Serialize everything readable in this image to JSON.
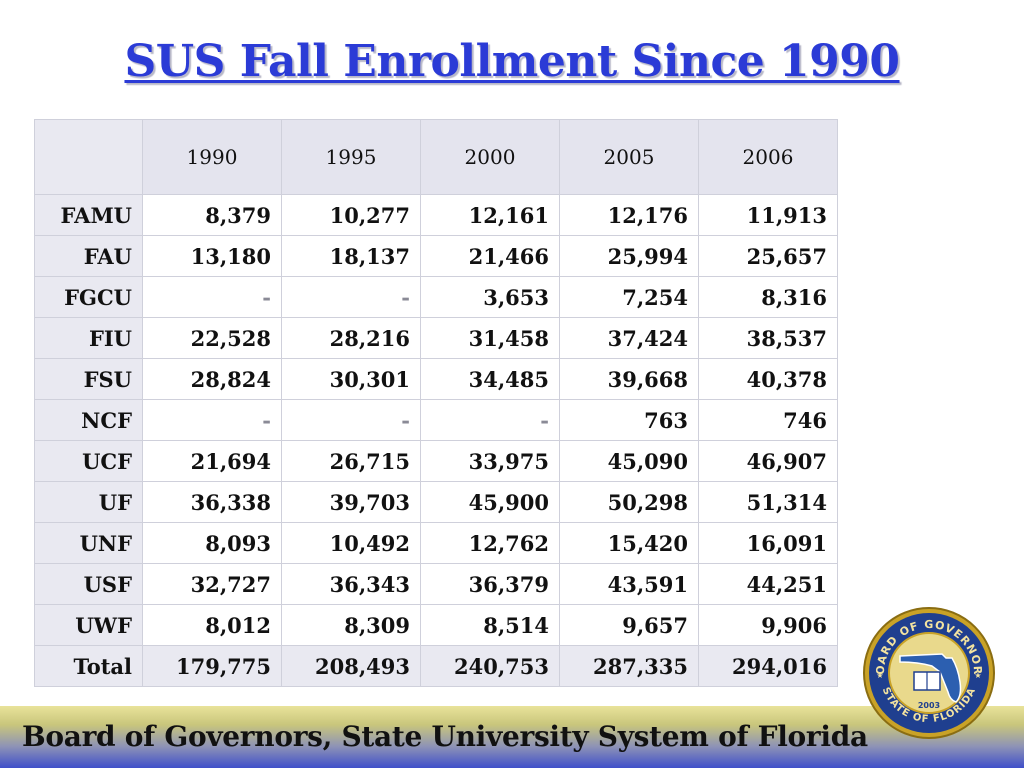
{
  "title": "SUS Fall Enrollment Since 1990",
  "table": {
    "corner": "",
    "years": [
      "1990",
      "1995",
      "2000",
      "2005",
      "2006"
    ],
    "rows": [
      {
        "name": "FAMU",
        "values": [
          "8,379",
          "10,277",
          "12,161",
          "12,176",
          "11,913"
        ]
      },
      {
        "name": "FAU",
        "values": [
          "13,180",
          "18,137",
          "21,466",
          "25,994",
          "25,657"
        ]
      },
      {
        "name": "FGCU",
        "values": [
          "-",
          "-",
          "3,653",
          "7,254",
          "8,316"
        ]
      },
      {
        "name": "FIU",
        "values": [
          "22,528",
          "28,216",
          "31,458",
          "37,424",
          "38,537"
        ]
      },
      {
        "name": "FSU",
        "values": [
          "28,824",
          "30,301",
          "34,485",
          "39,668",
          "40,378"
        ]
      },
      {
        "name": "NCF",
        "values": [
          "-",
          "-",
          "-",
          "763",
          "746"
        ]
      },
      {
        "name": "UCF",
        "values": [
          "21,694",
          "26,715",
          "33,975",
          "45,090",
          "46,907"
        ]
      },
      {
        "name": "UF",
        "values": [
          "36,338",
          "39,703",
          "45,900",
          "50,298",
          "51,314"
        ]
      },
      {
        "name": "UNF",
        "values": [
          "8,093",
          "10,492",
          "12,762",
          "15,420",
          "16,091"
        ]
      },
      {
        "name": "USF",
        "values": [
          "32,727",
          "36,343",
          "36,379",
          "43,591",
          "44,251"
        ]
      },
      {
        "name": "UWF",
        "values": [
          "8,012",
          "8,309",
          "8,514",
          "9,657",
          "9,906"
        ]
      },
      {
        "name": "Total",
        "values": [
          "179,775",
          "208,493",
          "240,753",
          "287,335",
          "294,016"
        ]
      }
    ]
  },
  "footer": "Board of Governors, State University System of Florida",
  "seal": {
    "top_text": "BOARD OF GOVERNORS",
    "bottom_text": "STATE OF FLORIDA",
    "year": "2003",
    "colors": {
      "ring": "#c9a227",
      "inner": "#1f3f8f",
      "state": "#2c5fb0"
    }
  }
}
